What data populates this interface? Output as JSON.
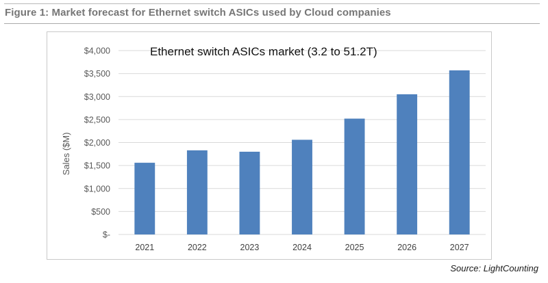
{
  "figure": {
    "caption": "Figure 1: Market forecast for Ethernet switch ASICs used by Cloud companies",
    "source": "Source: LightCounting"
  },
  "colors": {
    "bar": "#4f81bd",
    "grid": "#d9d9d9",
    "caption": "#767676"
  },
  "chart_data": {
    "type": "bar",
    "title": "Ethernet switch ASICs market (3.2 to 51.2T)",
    "xlabel": "",
    "ylabel": "Sales ($M)",
    "categories": [
      "2021",
      "2022",
      "2023",
      "2024",
      "2025",
      "2026",
      "2027"
    ],
    "values": [
      1560,
      1830,
      1800,
      2060,
      2520,
      3050,
      3570
    ],
    "ylim": [
      0,
      4000
    ],
    "yticks": [
      0,
      500,
      1000,
      1500,
      2000,
      2500,
      3000,
      3500,
      4000
    ],
    "ytick_labels": [
      "$-",
      "$500",
      "$1,000",
      "$1,500",
      "$2,000",
      "$2,500",
      "$3,000",
      "$3,500",
      "$4,000"
    ],
    "grid": true,
    "legend": "none"
  }
}
